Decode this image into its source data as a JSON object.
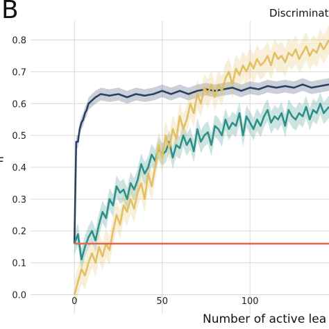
{
  "panel_label": "B",
  "chart_data": {
    "type": "line",
    "title": "Discriminativ",
    "xlabel": "Number of active lea",
    "ylabel": "F",
    "xlim": [
      -25,
      145
    ],
    "ylim": [
      -0.06,
      0.86
    ],
    "xticks": [
      "0",
      "50",
      "100"
    ],
    "yticks": [
      "0.0",
      "0.1",
      "0.2",
      "0.3",
      "0.4",
      "0.5",
      "0.6",
      "0.7",
      "0.8"
    ],
    "grid": true,
    "colors": {
      "navy": "#2b3f63",
      "teal": "#2e8f87",
      "gold": "#e2bf63",
      "red": "#e0694f"
    },
    "series": [
      {
        "color": "navy",
        "x": [
          0,
          1,
          2,
          3,
          4,
          5,
          6,
          7,
          8,
          10,
          12,
          15,
          20,
          25,
          30,
          35,
          40,
          45,
          50,
          55,
          60,
          65,
          70,
          75,
          80,
          85,
          90,
          95,
          100,
          105,
          110,
          115,
          120,
          125,
          130,
          135,
          140,
          145
        ],
        "y": [
          0.16,
          0.48,
          0.48,
          0.52,
          0.54,
          0.55,
          0.57,
          0.58,
          0.6,
          0.61,
          0.62,
          0.63,
          0.625,
          0.63,
          0.62,
          0.63,
          0.625,
          0.63,
          0.64,
          0.63,
          0.64,
          0.63,
          0.64,
          0.645,
          0.64,
          0.645,
          0.65,
          0.64,
          0.65,
          0.645,
          0.655,
          0.65,
          0.655,
          0.65,
          0.66,
          0.65,
          0.655,
          0.66
        ]
      },
      {
        "color": "teal",
        "x": [
          0,
          2,
          4,
          6,
          8,
          10,
          12,
          14,
          16,
          18,
          20,
          22,
          24,
          26,
          28,
          30,
          32,
          34,
          36,
          38,
          40,
          42,
          44,
          46,
          48,
          50,
          52,
          54,
          56,
          58,
          60,
          62,
          64,
          66,
          68,
          70,
          72,
          74,
          76,
          78,
          80,
          82,
          84,
          86,
          88,
          90,
          92,
          94,
          96,
          98,
          100,
          102,
          104,
          106,
          108,
          110,
          112,
          114,
          116,
          118,
          120,
          122,
          124,
          126,
          128,
          130,
          132,
          134,
          136,
          138,
          140,
          142,
          145
        ],
        "y": [
          0.16,
          0.19,
          0.11,
          0.15,
          0.18,
          0.2,
          0.17,
          0.22,
          0.26,
          0.24,
          0.3,
          0.28,
          0.34,
          0.32,
          0.33,
          0.3,
          0.35,
          0.33,
          0.36,
          0.41,
          0.38,
          0.4,
          0.44,
          0.42,
          0.46,
          0.44,
          0.45,
          0.48,
          0.43,
          0.47,
          0.46,
          0.5,
          0.47,
          0.49,
          0.45,
          0.52,
          0.48,
          0.5,
          0.51,
          0.47,
          0.53,
          0.52,
          0.5,
          0.55,
          0.52,
          0.54,
          0.53,
          0.57,
          0.5,
          0.56,
          0.54,
          0.52,
          0.55,
          0.53,
          0.56,
          0.58,
          0.54,
          0.56,
          0.55,
          0.57,
          0.53,
          0.58,
          0.56,
          0.55,
          0.57,
          0.56,
          0.59,
          0.55,
          0.58,
          0.57,
          0.6,
          0.57,
          0.59
        ]
      },
      {
        "color": "gold",
        "x": [
          0,
          2,
          4,
          6,
          8,
          10,
          12,
          14,
          16,
          18,
          20,
          22,
          24,
          26,
          28,
          30,
          32,
          34,
          36,
          38,
          40,
          42,
          44,
          46,
          48,
          50,
          52,
          54,
          56,
          58,
          60,
          62,
          64,
          66,
          68,
          70,
          72,
          74,
          76,
          78,
          80,
          82,
          84,
          86,
          88,
          90,
          92,
          94,
          96,
          98,
          100,
          102,
          104,
          106,
          108,
          110,
          112,
          114,
          116,
          118,
          120,
          122,
          124,
          126,
          128,
          130,
          132,
          134,
          136,
          138,
          140,
          142,
          145
        ],
        "y": [
          0.0,
          0.04,
          0.08,
          0.06,
          0.1,
          0.13,
          0.1,
          0.15,
          0.12,
          0.16,
          0.14,
          0.2,
          0.25,
          0.22,
          0.28,
          0.26,
          0.3,
          0.27,
          0.32,
          0.35,
          0.3,
          0.38,
          0.34,
          0.4,
          0.47,
          0.43,
          0.5,
          0.46,
          0.52,
          0.49,
          0.56,
          0.52,
          0.55,
          0.6,
          0.57,
          0.63,
          0.6,
          0.65,
          0.63,
          0.66,
          0.62,
          0.66,
          0.64,
          0.68,
          0.7,
          0.66,
          0.71,
          0.69,
          0.72,
          0.7,
          0.73,
          0.71,
          0.74,
          0.72,
          0.73,
          0.75,
          0.72,
          0.76,
          0.74,
          0.75,
          0.73,
          0.76,
          0.75,
          0.77,
          0.74,
          0.76,
          0.78,
          0.75,
          0.77,
          0.76,
          0.79,
          0.77,
          0.8
        ]
      },
      {
        "color": "red",
        "x": [
          0,
          145
        ],
        "y": [
          0.16,
          0.16
        ]
      }
    ]
  }
}
